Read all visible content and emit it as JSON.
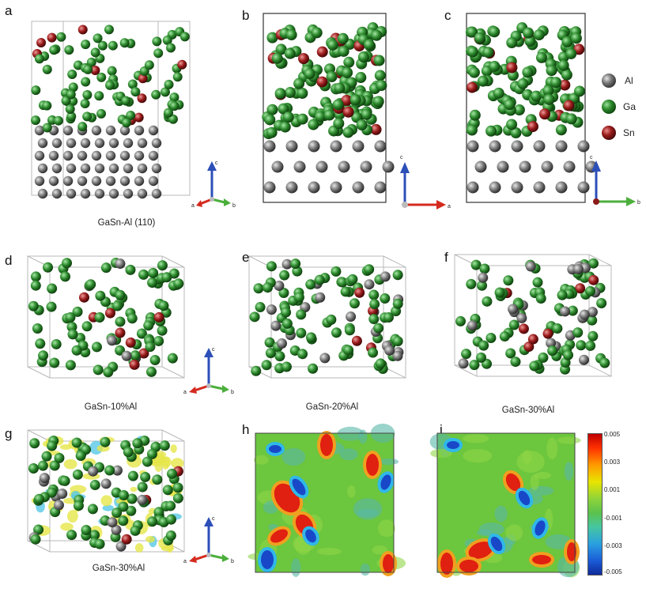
{
  "panels": {
    "a": {
      "label": "a",
      "caption": "GaSn-Al (110)"
    },
    "b": {
      "label": "b"
    },
    "c": {
      "label": "c"
    },
    "d": {
      "label": "d",
      "caption": "GaSn-10%Al"
    },
    "e": {
      "label": "e",
      "caption": "GaSn-20%Al"
    },
    "f": {
      "label": "f",
      "caption": "GaSn-30%Al"
    },
    "g": {
      "label": "g",
      "caption": "GaSn-30%Al"
    },
    "h": {
      "label": "h"
    },
    "i": {
      "label": "i"
    }
  },
  "legend": {
    "items": [
      {
        "label": "Al",
        "color": "#7a7a7a"
      },
      {
        "label": "Ga",
        "color": "#2e8b2e"
      },
      {
        "label": "Sn",
        "color": "#9b1c1c"
      }
    ]
  },
  "axes_labels": {
    "a": "a",
    "b": "b",
    "c": "c"
  },
  "colorbar": {
    "ticks": [
      "0.005",
      "0.003",
      "0.001",
      "-0.001",
      "-0.003",
      "-0.005"
    ],
    "min": -0.005,
    "max": 0.005
  },
  "colors": {
    "al": "#7a7a7a",
    "ga": "#2e8b2e",
    "sn": "#9b1c1c",
    "box": "#b8b8b8",
    "axis_c": "#2c4fb8",
    "axis_a": "#d42a1e",
    "axis_b": "#4caf3c"
  }
}
